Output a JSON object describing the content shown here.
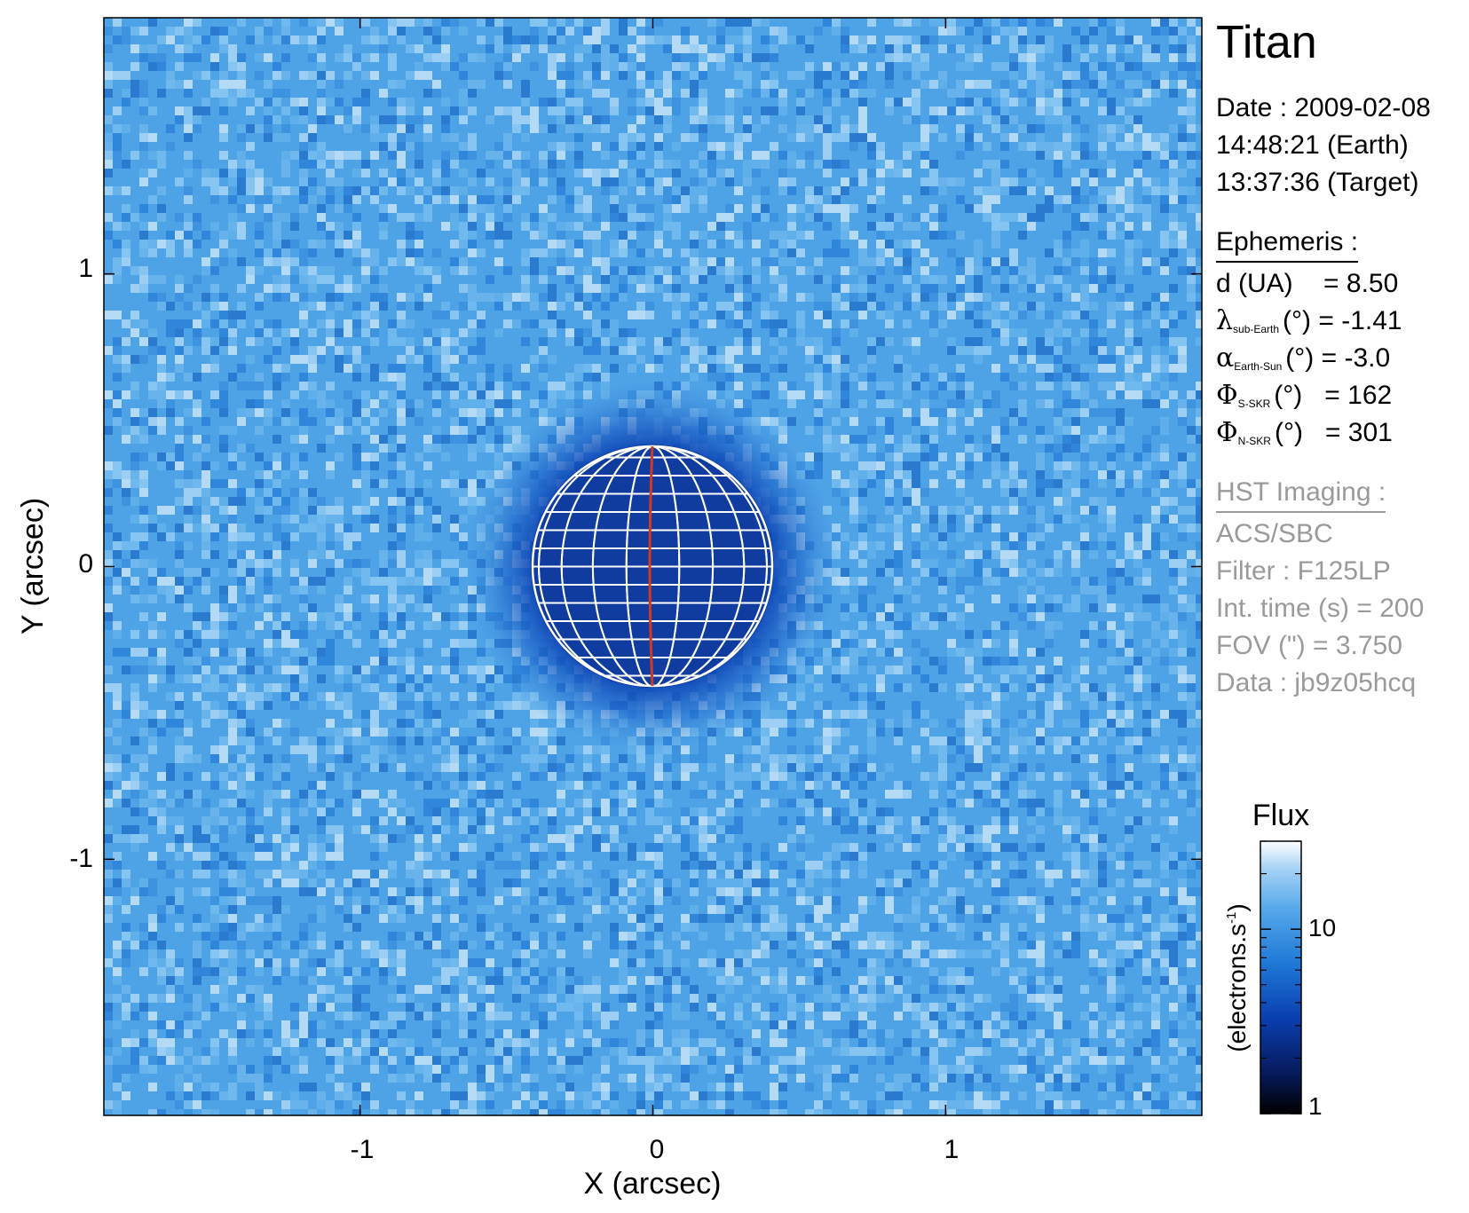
{
  "chart_data": {
    "type": "heatmap",
    "title": "Titan",
    "xlabel": "X (arcsec)",
    "ylabel": "Y (arcsec)",
    "xlim": [
      -1.875,
      1.875
    ],
    "ylim": [
      -1.875,
      1.875
    ],
    "x_ticks": [
      "-1",
      "0",
      "1"
    ],
    "y_ticks": [
      "1",
      "0",
      "-1"
    ],
    "x_tick_values": [
      -1,
      0,
      1
    ],
    "y_tick_values": [
      1,
      0,
      -1
    ],
    "colorbar": {
      "title": "Flux",
      "label": "(electrons.s",
      "label_sup": "-1",
      "label_close": ")",
      "scale": "log",
      "range": [
        1,
        30
      ],
      "tick_labels": [
        "10",
        "1"
      ],
      "tick_values": [
        10,
        1
      ],
      "colors": [
        "#000000",
        "#061a5c",
        "#0a3fb0",
        "#1e78d6",
        "#55a8ea",
        "#a6d2f5",
        "#ffffff"
      ]
    },
    "disk": {
      "center": [
        0.0,
        0.0
      ],
      "radius_arcsec": 0.41,
      "grid_color": "#ffffff",
      "meridian_color": "#d9371c",
      "background_flux_color": "#4ea2e6",
      "disk_flux_color": "#0f3c9e"
    }
  },
  "info": {
    "date_line": "Date : 2009-02-08",
    "earth_time": "14:48:21 (Earth)",
    "target_time": "13:37:36 (Target)",
    "ephemeris_title": "Ephemeris :",
    "d_label": "d (UA)",
    "d_value": "= 8.50",
    "lambda_sym": "λ",
    "lambda_sub": "sub-Earth",
    "lambda_value": "(°) = -1.41",
    "alpha_sym": "α",
    "alpha_sub": "Earth-Sun",
    "alpha_value": "(°) = -3.0",
    "phi_sym": "Φ",
    "phi_s_sub": "S-SKR",
    "phi_s_value": "(°)   = 162",
    "phi_n_sub": "N-SKR",
    "phi_n_value": "(°)   = 301",
    "hst_title": "HST Imaging :",
    "instrument": "ACS/SBC",
    "filter": "Filter : F125LP",
    "int_time": "Int. time (s) = 200",
    "fov": "FOV (\") = 3.750",
    "dataset": "Data : jb9z05hcq"
  }
}
